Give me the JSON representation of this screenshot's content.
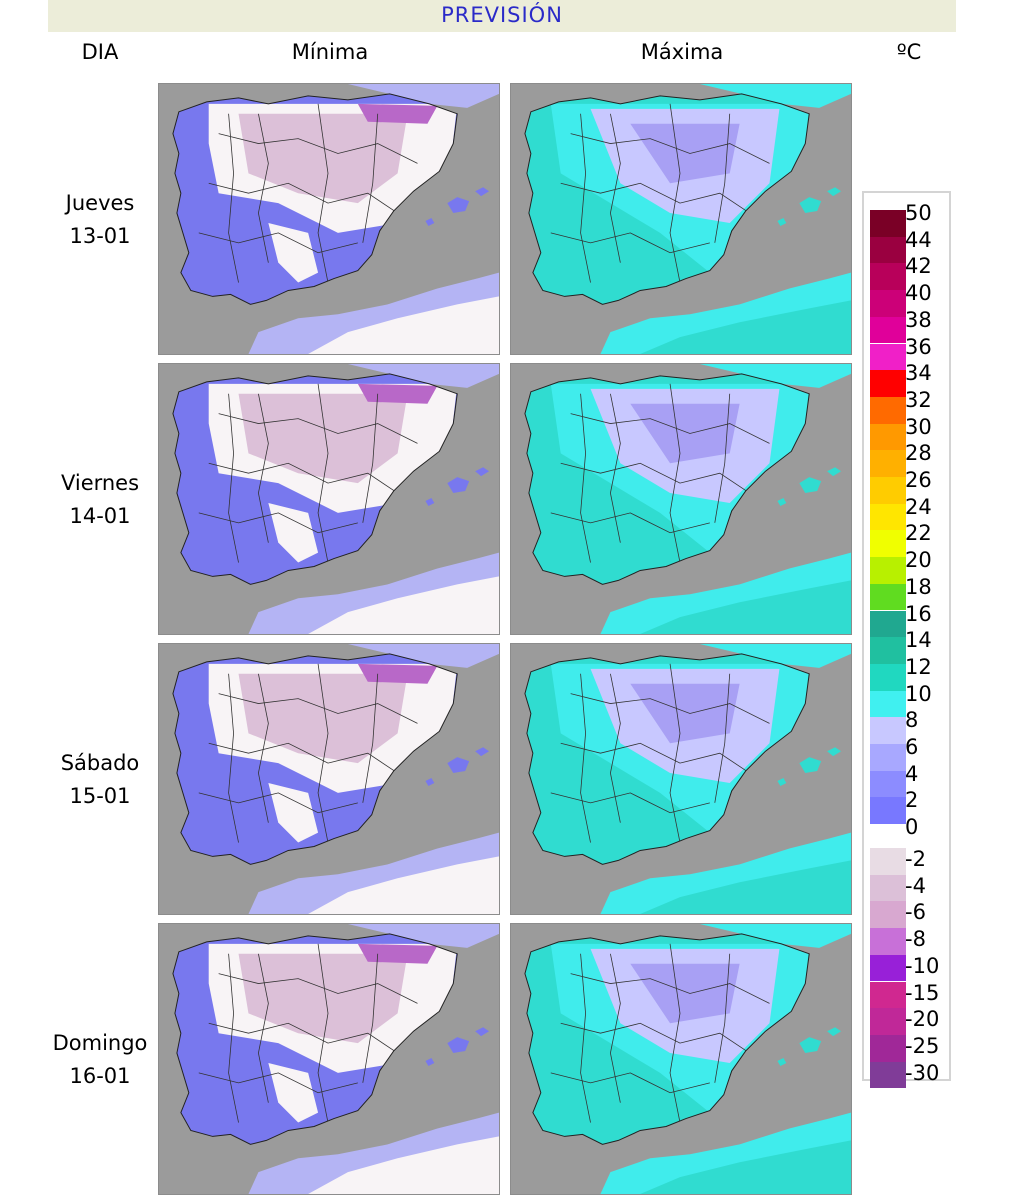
{
  "header": {
    "title": "PREVISIÓN"
  },
  "columns": {
    "day": "DIA",
    "min": "Mínima",
    "max": "Máxima",
    "unit": "ºC"
  },
  "days": [
    {
      "name": "Jueves",
      "date": "13-01"
    },
    {
      "name": "Viernes",
      "date": "14-01"
    },
    {
      "name": "Sábado",
      "date": "15-01"
    },
    {
      "name": "Domingo",
      "date": "16-01"
    }
  ],
  "legend": {
    "warm": [
      "50",
      "44",
      "42",
      "40",
      "38",
      "36",
      "34",
      "32",
      "30",
      "28",
      "26",
      "24",
      "22",
      "20",
      "18",
      "16",
      "14",
      "12",
      "10",
      "8",
      "6",
      "4",
      "2",
      "0"
    ],
    "cold": [
      "-2",
      "-4",
      "-6",
      "-8",
      "-10",
      "-15",
      "-20",
      "-25",
      "-30"
    ],
    "colors_warm": [
      "#7a0026",
      "#9a0040",
      "#b8005a",
      "#cc0078",
      "#e0009a",
      "#f020c8",
      "#ff0000",
      "#ff6a00",
      "#ff9900",
      "#ffb000",
      "#ffcc00",
      "#ffe600",
      "#f0ff00",
      "#b8f000",
      "#60dc20",
      "#20a890",
      "#20c0a0",
      "#20d8c0",
      "#40f0f0",
      "#c8c8ff",
      "#a8a8ff",
      "#8c8cff",
      "#7878ff",
      "#6464f0"
    ],
    "colors_cold": [
      "#e8dce4",
      "#dcc0d8",
      "#d8a8d0",
      "#c870d8",
      "#9820d8",
      "#d02890",
      "#c02898",
      "#a02898",
      "#803c98"
    ]
  },
  "map_colors": {
    "sea": "#9b9b9b",
    "min_base": "#7878ee",
    "min_pale": "#b4b4f4",
    "min_white": "#f8f4f6",
    "min_pink": "#dcc0d8",
    "min_purple": "#b868c8",
    "max_base": "#30dcd0",
    "max_cyan": "#40ecec",
    "max_lav": "#c8c8ff",
    "max_purple": "#a8a0f4"
  }
}
